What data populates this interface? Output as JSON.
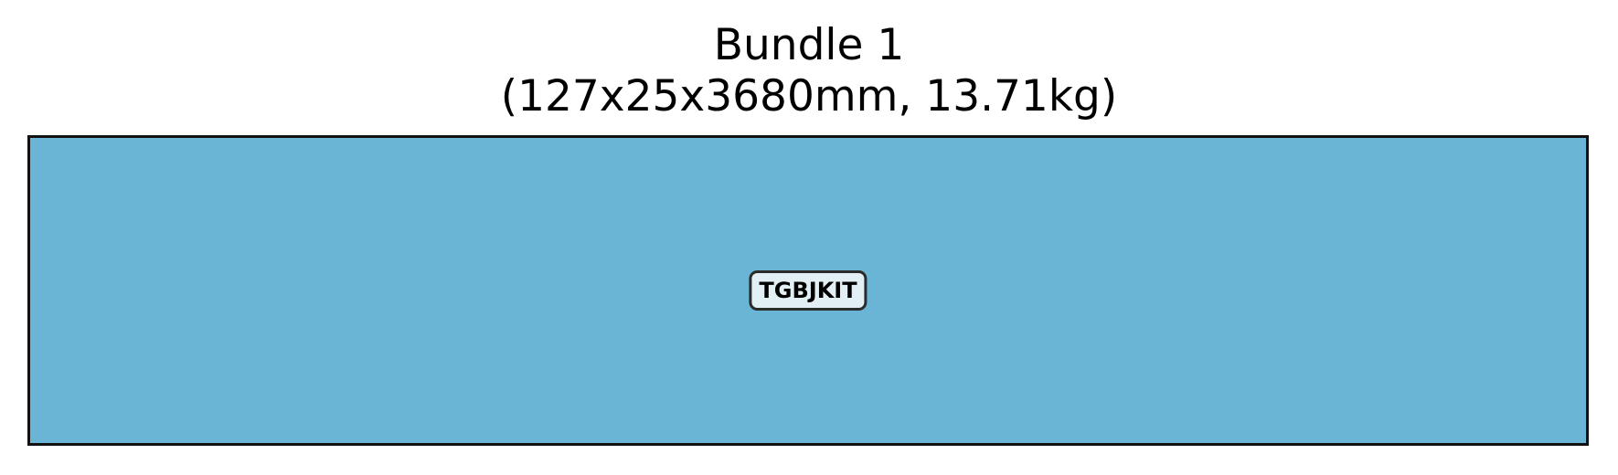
{
  "title": {
    "line1": "Bundle 1",
    "line2": "(127x25x3680mm, 13.71kg)"
  },
  "bundle": {
    "fill_color": "#6ab4d5",
    "border_color": "#111111",
    "items": [
      {
        "label": "TGBJKIT",
        "label_background": "#e2f0f6"
      }
    ]
  }
}
